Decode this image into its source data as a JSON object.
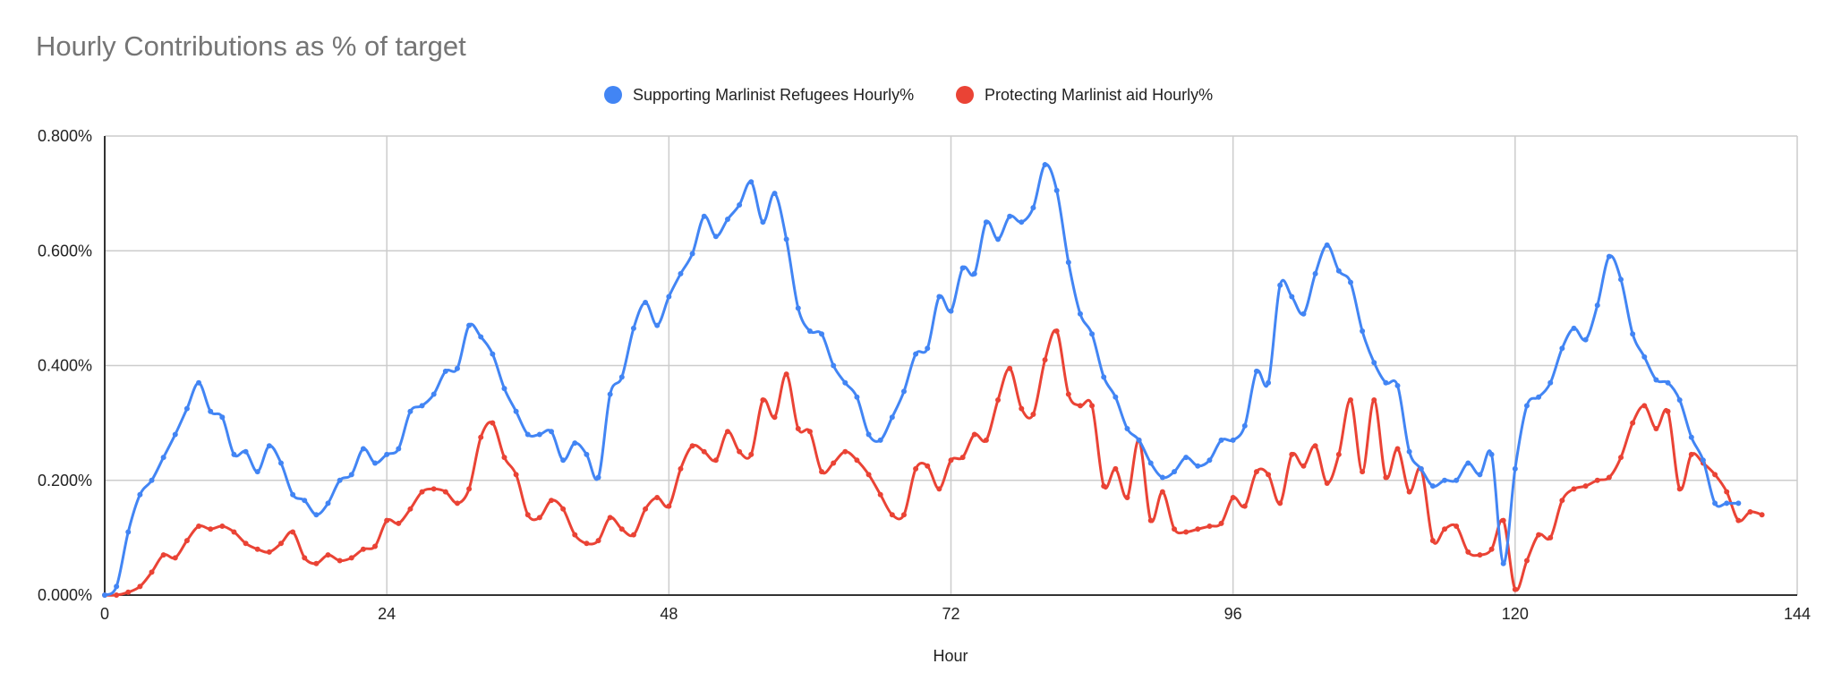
{
  "chart_data": {
    "type": "line",
    "title": "Hourly Contributions as % of target",
    "xlabel": "Hour",
    "ylabel": "",
    "xlim": [
      0,
      144
    ],
    "ylim": [
      0,
      0.8
    ],
    "x_ticks": [
      "0",
      "24",
      "48",
      "72",
      "96",
      "120",
      "144"
    ],
    "y_ticks": [
      "0.000%",
      "0.200%",
      "0.400%",
      "0.600%",
      "0.800%"
    ],
    "grid": true,
    "legend_position": "top",
    "colors": {
      "axis": "#333333",
      "grid": "#cccccc",
      "title": "#757575"
    },
    "series": [
      {
        "name": "Supporting Marlinist Refugees Hourly%",
        "color": "#4285F4",
        "values": [
          0.0,
          0.015,
          0.11,
          0.175,
          0.2,
          0.24,
          0.28,
          0.325,
          0.37,
          0.32,
          0.31,
          0.245,
          0.25,
          0.215,
          0.26,
          0.23,
          0.175,
          0.165,
          0.14,
          0.16,
          0.2,
          0.21,
          0.255,
          0.23,
          0.245,
          0.255,
          0.32,
          0.33,
          0.35,
          0.39,
          0.395,
          0.47,
          0.45,
          0.42,
          0.36,
          0.32,
          0.28,
          0.28,
          0.285,
          0.235,
          0.265,
          0.245,
          0.205,
          0.35,
          0.38,
          0.465,
          0.51,
          0.47,
          0.52,
          0.56,
          0.595,
          0.66,
          0.625,
          0.655,
          0.68,
          0.72,
          0.65,
          0.7,
          0.62,
          0.5,
          0.46,
          0.455,
          0.4,
          0.37,
          0.345,
          0.28,
          0.27,
          0.31,
          0.355,
          0.42,
          0.43,
          0.52,
          0.495,
          0.57,
          0.56,
          0.65,
          0.62,
          0.66,
          0.65,
          0.675,
          0.75,
          0.705,
          0.58,
          0.49,
          0.455,
          0.38,
          0.345,
          0.29,
          0.27,
          0.23,
          0.205,
          0.215,
          0.24,
          0.225,
          0.235,
          0.27,
          0.27,
          0.295,
          0.39,
          0.37,
          0.54,
          0.52,
          0.49,
          0.56,
          0.61,
          0.565,
          0.545,
          0.46,
          0.405,
          0.37,
          0.365,
          0.25,
          0.22,
          0.19,
          0.2,
          0.2,
          0.23,
          0.21,
          0.245,
          0.055,
          0.22,
          0.33,
          0.345,
          0.37,
          0.43,
          0.465,
          0.445,
          0.505,
          0.59,
          0.55,
          0.455,
          0.415,
          0.375,
          0.37,
          0.34,
          0.275,
          0.235,
          0.16,
          0.16,
          0.16
        ]
      },
      {
        "name": "Protecting Marlinist aid Hourly%",
        "color": "#EA4335",
        "values": [
          0.0,
          0.0,
          0.005,
          0.015,
          0.04,
          0.07,
          0.065,
          0.095,
          0.12,
          0.115,
          0.12,
          0.11,
          0.09,
          0.08,
          0.075,
          0.09,
          0.11,
          0.065,
          0.055,
          0.07,
          0.06,
          0.065,
          0.08,
          0.085,
          0.13,
          0.125,
          0.15,
          0.18,
          0.185,
          0.18,
          0.16,
          0.185,
          0.275,
          0.3,
          0.24,
          0.21,
          0.14,
          0.135,
          0.165,
          0.15,
          0.105,
          0.09,
          0.095,
          0.135,
          0.115,
          0.105,
          0.15,
          0.17,
          0.155,
          0.22,
          0.26,
          0.25,
          0.235,
          0.285,
          0.25,
          0.245,
          0.34,
          0.31,
          0.385,
          0.29,
          0.285,
          0.215,
          0.23,
          0.25,
          0.235,
          0.21,
          0.175,
          0.14,
          0.14,
          0.22,
          0.225,
          0.185,
          0.235,
          0.24,
          0.28,
          0.27,
          0.34,
          0.395,
          0.325,
          0.315,
          0.41,
          0.46,
          0.35,
          0.33,
          0.33,
          0.19,
          0.22,
          0.17,
          0.27,
          0.13,
          0.18,
          0.115,
          0.11,
          0.115,
          0.12,
          0.125,
          0.17,
          0.155,
          0.215,
          0.21,
          0.16,
          0.245,
          0.225,
          0.26,
          0.195,
          0.245,
          0.34,
          0.215,
          0.34,
          0.205,
          0.255,
          0.18,
          0.22,
          0.095,
          0.115,
          0.12,
          0.075,
          0.07,
          0.08,
          0.13,
          0.01,
          0.06,
          0.105,
          0.1,
          0.165,
          0.185,
          0.19,
          0.2,
          0.205,
          0.24,
          0.3,
          0.33,
          0.29,
          0.32,
          0.185,
          0.245,
          0.23,
          0.21,
          0.18,
          0.13,
          0.145,
          0.14
        ]
      }
    ]
  }
}
